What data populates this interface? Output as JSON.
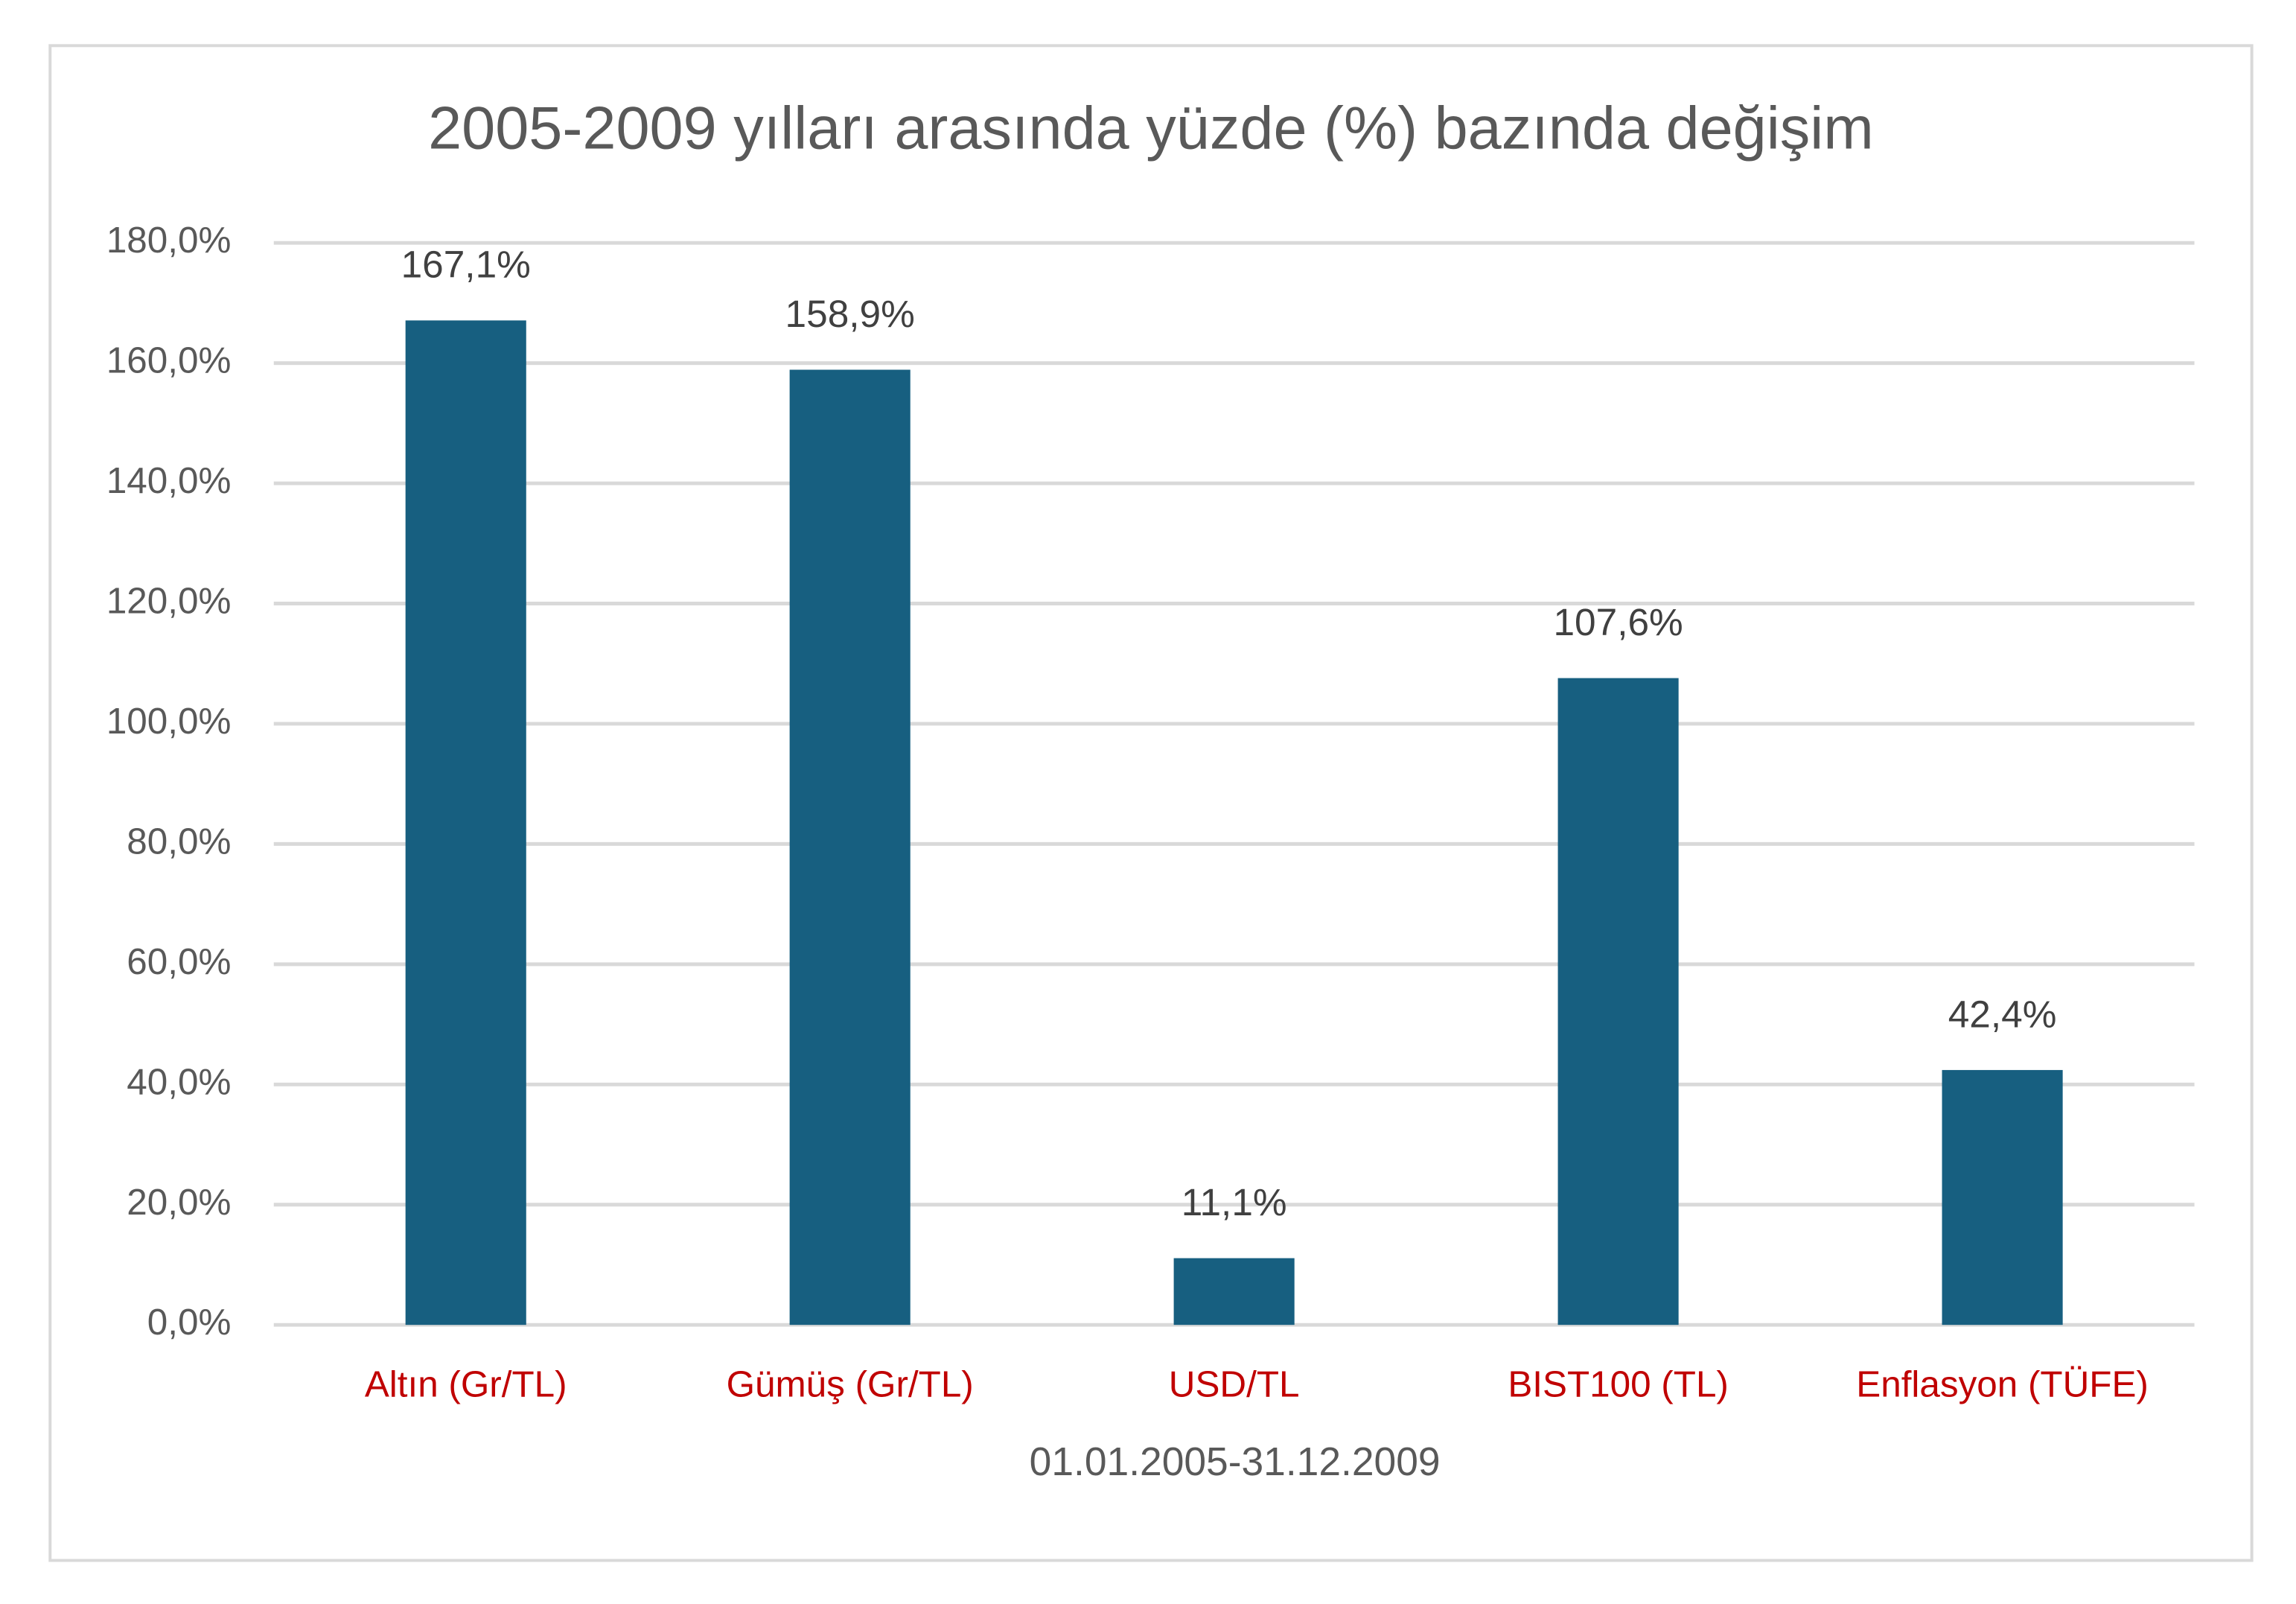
{
  "chart_data": {
    "type": "bar",
    "title": "2005-2009 yılları arasında yüzde (%) bazında değişim",
    "x_label": "01.01.2005-31.12.2009",
    "categories": [
      "Altın (Gr/TL)",
      "Gümüş (Gr/TL)",
      "USD/TL",
      "BIST100 (TL)",
      "Enflasyon (TÜFE)"
    ],
    "values": [
      167.1,
      158.9,
      11.1,
      107.6,
      42.4
    ],
    "value_labels": [
      "167,1%",
      "158,9%",
      "11,1%",
      "107,6%",
      "42,4%"
    ],
    "color": "#175f80",
    "category_label_color": "#c00000",
    "ylim": [
      0,
      180
    ],
    "yticks": [
      {
        "value": 0,
        "label": "0,0%"
      },
      {
        "value": 20,
        "label": "20,0%"
      },
      {
        "value": 40,
        "label": "40,0%"
      },
      {
        "value": 60,
        "label": "60,0%"
      },
      {
        "value": 80,
        "label": "80,0%"
      },
      {
        "value": 100,
        "label": "100,0%"
      },
      {
        "value": 120,
        "label": "120,0%"
      },
      {
        "value": 140,
        "label": "140,0%"
      },
      {
        "value": 160,
        "label": "160,0%"
      },
      {
        "value": 180,
        "label": "180,0%"
      }
    ],
    "grid": true
  }
}
